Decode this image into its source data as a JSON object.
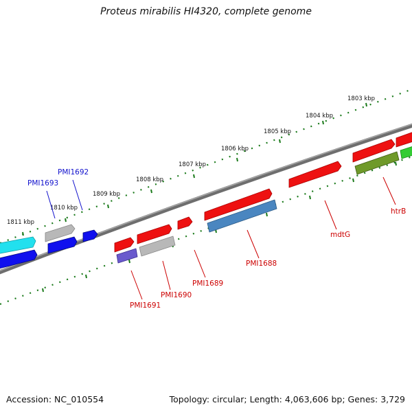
{
  "header": {
    "title": "Proteus mirabilis HI4320, complete genome"
  },
  "footer": {
    "accession": "Accession: NC_010554",
    "topology": "Topology: circular; Length: 4,063,606 bp; Genes: 3,729"
  },
  "ruler": {
    "labels": [
      "1803 kbp",
      "1804 kbp",
      "1805 kbp",
      "1806 kbp",
      "1807 kbp",
      "1808 kbp",
      "1809 kbp",
      "1810 kbp",
      "1811 kbp"
    ]
  },
  "genes": {
    "htrB": "htrB",
    "mdtG": "mdtG",
    "PMI1688": "PMI1688",
    "PMI1689": "PMI1689",
    "PMI1690": "PMI1690",
    "PMI1691": "PMI1691",
    "PMI1692": "PMI1692",
    "PMI1693": "PMI1693"
  },
  "colors": {
    "backbone": "#7a7a7a",
    "ruler": "#1a7a1a",
    "forward_label": "#1010cc",
    "reverse_label": "#cc0000",
    "red_gene": "#ee1111",
    "blue_gene": "#1010ee",
    "gray_gene": "#b8b8b8",
    "cyan_gene": "#22e0ee",
    "steelblue_gene": "#4a86c0",
    "olive_gene": "#6f9a2a",
    "green_gene": "#33cc33",
    "purple_gene": "#6a5acd"
  }
}
